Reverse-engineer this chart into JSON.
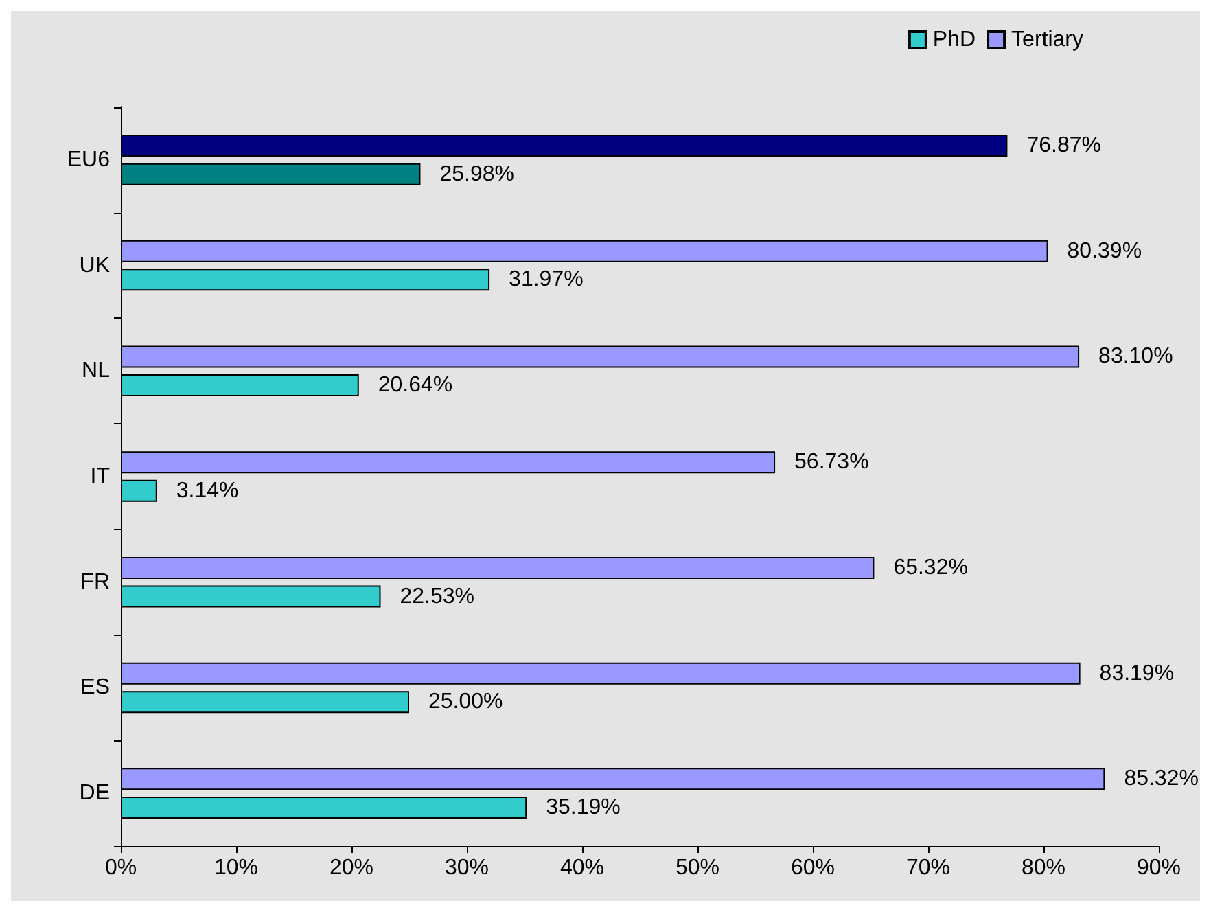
{
  "chart_data": {
    "type": "bar",
    "orientation": "horizontal",
    "categories": [
      "EU6",
      "UK",
      "NL",
      "IT",
      "FR",
      "ES",
      "DE"
    ],
    "series": [
      {
        "name": "PhD",
        "color": "#33cccc",
        "colors": [
          "#008080",
          "#33cccc",
          "#33cccc",
          "#33cccc",
          "#33cccc",
          "#33cccc",
          "#33cccc"
        ],
        "values": [
          25.98,
          31.97,
          20.64,
          3.14,
          22.53,
          25.0,
          35.19
        ],
        "value_labels": [
          "25.98%",
          "31.97%",
          "20.64%",
          "3.14%",
          "22.53%",
          "25.00%",
          "35.19%"
        ]
      },
      {
        "name": "Tertiary",
        "color": "#9999ff",
        "colors": [
          "#000080",
          "#9999ff",
          "#9999ff",
          "#9999ff",
          "#9999ff",
          "#9999ff",
          "#9999ff"
        ],
        "values": [
          76.87,
          80.39,
          83.1,
          56.73,
          65.32,
          83.19,
          85.32
        ],
        "value_labels": [
          "76.87%",
          "80.39%",
          "83.10%",
          "56.73%",
          "65.32%",
          "83.19%",
          "85.32%"
        ]
      }
    ],
    "xlim": [
      0,
      90
    ],
    "xticks": [
      {
        "value": 0,
        "label": "0%"
      },
      {
        "value": 10,
        "label": "10%"
      },
      {
        "value": 20,
        "label": "20%"
      },
      {
        "value": 30,
        "label": "30%"
      },
      {
        "value": 40,
        "label": "40%"
      },
      {
        "value": 50,
        "label": "50%"
      },
      {
        "value": 60,
        "label": "60%"
      },
      {
        "value": 70,
        "label": "70%"
      },
      {
        "value": 80,
        "label": "80%"
      },
      {
        "value": 90,
        "label": "90%"
      }
    ],
    "legend": "top right",
    "grid": false
  }
}
